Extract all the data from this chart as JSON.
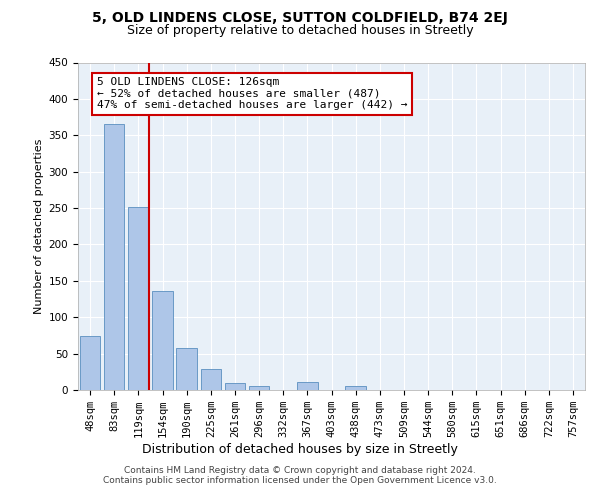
{
  "title1": "5, OLD LINDENS CLOSE, SUTTON COLDFIELD, B74 2EJ",
  "title2": "Size of property relative to detached houses in Streetly",
  "xlabel": "Distribution of detached houses by size in Streetly",
  "ylabel": "Number of detached properties",
  "categories": [
    "48sqm",
    "83sqm",
    "119sqm",
    "154sqm",
    "190sqm",
    "225sqm",
    "261sqm",
    "296sqm",
    "332sqm",
    "367sqm",
    "403sqm",
    "438sqm",
    "473sqm",
    "509sqm",
    "544sqm",
    "580sqm",
    "615sqm",
    "651sqm",
    "686sqm",
    "722sqm",
    "757sqm"
  ],
  "values": [
    74,
    365,
    252,
    136,
    58,
    29,
    10,
    5,
    0,
    11,
    0,
    5,
    0,
    0,
    0,
    0,
    0,
    0,
    0,
    0,
    0
  ],
  "bar_color": "#aec6e8",
  "bar_edge_color": "#5a8fc0",
  "vline_color": "#cc0000",
  "annotation_text": "5 OLD LINDENS CLOSE: 126sqm\n← 52% of detached houses are smaller (487)\n47% of semi-detached houses are larger (442) →",
  "annotation_box_color": "#cc0000",
  "ylim": [
    0,
    450
  ],
  "yticks": [
    0,
    50,
    100,
    150,
    200,
    250,
    300,
    350,
    400,
    450
  ],
  "footer1": "Contains HM Land Registry data © Crown copyright and database right 2024.",
  "footer2": "Contains public sector information licensed under the Open Government Licence v3.0.",
  "bg_color": "#e8f0f8",
  "fig_bg_color": "#ffffff",
  "title1_fontsize": 10,
  "title2_fontsize": 9,
  "ylabel_fontsize": 8,
  "xlabel_fontsize": 9,
  "tick_fontsize": 7.5,
  "ann_fontsize": 8,
  "footer_fontsize": 6.5
}
